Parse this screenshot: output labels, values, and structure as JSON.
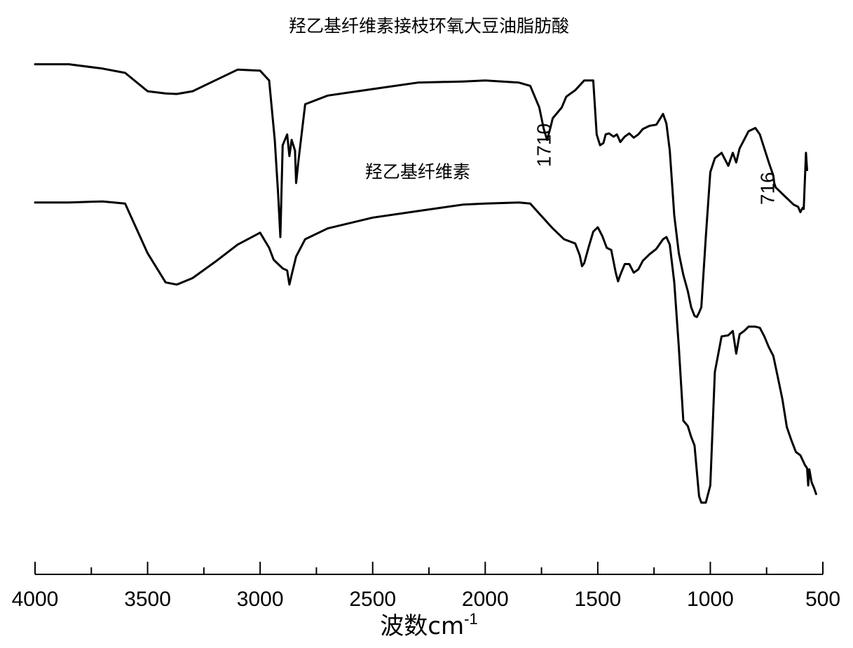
{
  "chart_data": {
    "type": "line",
    "title": "",
    "xlabel": "波数cm",
    "xlabel_superscript": "-1",
    "ylabel": "",
    "xlim": [
      4000,
      500
    ],
    "x_reversed": true,
    "y_axis_shown": false,
    "grid": false,
    "x_ticks": [
      {
        "value": 4000,
        "label": "4000"
      },
      {
        "value": 3500,
        "label": "3500"
      },
      {
        "value": 3000,
        "label": "3000"
      },
      {
        "value": 2500,
        "label": "2500"
      },
      {
        "value": 2000,
        "label": "2000"
      },
      {
        "value": 1500,
        "label": "1500"
      },
      {
        "value": 1000,
        "label": "1000"
      },
      {
        "value": 500,
        "label": "500"
      }
    ],
    "x_minor_ticks": [
      3750,
      3250,
      2750,
      2250,
      1750,
      1250,
      750
    ],
    "ylim": [
      0,
      100
    ],
    "series": [
      {
        "name": "羟乙基纤维素接枝环氧大豆油脂肪酸",
        "x": [
          4000,
          3850,
          3700,
          3600,
          3500,
          3420,
          3370,
          3300,
          3200,
          3100,
          3000,
          2960,
          2935,
          2920,
          2910,
          2900,
          2880,
          2870,
          2860,
          2845,
          2840,
          2830,
          2800,
          2700,
          2500,
          2300,
          2100,
          2000,
          1850,
          1800,
          1760,
          1740,
          1725,
          1712,
          1700,
          1680,
          1660,
          1640,
          1600,
          1560,
          1520,
          1505,
          1490,
          1475,
          1465,
          1450,
          1430,
          1415,
          1400,
          1380,
          1360,
          1340,
          1320,
          1300,
          1270,
          1240,
          1210,
          1195,
          1180,
          1160,
          1140,
          1120,
          1100,
          1085,
          1070,
          1060,
          1050,
          1040,
          1020,
          1000,
          980,
          950,
          920,
          900,
          885,
          870,
          850,
          830,
          800,
          780,
          760,
          740,
          720,
          716,
          710,
          690,
          670,
          650,
          630,
          610,
          600,
          590,
          585,
          580,
          575,
          570
        ],
        "y": [
          92,
          92,
          91.2,
          90.4,
          87,
          86.6,
          86.5,
          87,
          89,
          91,
          90.8,
          89,
          78,
          68,
          60,
          77,
          79,
          75,
          78,
          76,
          70,
          74,
          84.6,
          86.2,
          87.4,
          88.6,
          88.8,
          89,
          88.6,
          88,
          84,
          80,
          78,
          80,
          82,
          83,
          84,
          86,
          87.2,
          89,
          89,
          79,
          77,
          77.4,
          79,
          79.2,
          78.6,
          79,
          77.6,
          78.6,
          79.2,
          78.4,
          79,
          80,
          80.6,
          80.8,
          82.8,
          81,
          76,
          64,
          57,
          53,
          50,
          47,
          45.4,
          45.2,
          46,
          47,
          60,
          72,
          74.6,
          75.6,
          73.2,
          75.6,
          73.8,
          76.4,
          78,
          79.6,
          80.2,
          79,
          76.4,
          73.8,
          71.4,
          70,
          69.2,
          68.4,
          67.6,
          66.8,
          66,
          65.6,
          64.6,
          65.4,
          65.2,
          70.4,
          75.6,
          72.4
        ],
        "y_units": "relative transmittance (percent of plot height)"
      },
      {
        "name": "羟乙基纤维素",
        "x": [
          4000,
          3850,
          3700,
          3600,
          3500,
          3420,
          3370,
          3300,
          3200,
          3100,
          3000,
          2960,
          2940,
          2920,
          2900,
          2880,
          2870,
          2860,
          2840,
          2800,
          2700,
          2500,
          2300,
          2100,
          2000,
          1850,
          1800,
          1700,
          1650,
          1600,
          1580,
          1570,
          1560,
          1540,
          1520,
          1500,
          1480,
          1460,
          1440,
          1420,
          1410,
          1400,
          1380,
          1360,
          1340,
          1320,
          1300,
          1270,
          1240,
          1210,
          1195,
          1180,
          1160,
          1140,
          1120,
          1100,
          1085,
          1070,
          1060,
          1050,
          1040,
          1020,
          1000,
          980,
          950,
          920,
          900,
          885,
          870,
          850,
          830,
          800,
          780,
          760,
          740,
          720,
          700,
          680,
          660,
          640,
          620,
          600,
          580,
          570,
          565,
          560,
          550,
          540,
          530
        ],
        "y": [
          66.4,
          66.4,
          66.6,
          66.2,
          57,
          51.6,
          51.2,
          52.4,
          55.4,
          58.6,
          60.8,
          58,
          55.8,
          55,
          54.2,
          53.8,
          51.2,
          53,
          56.4,
          59.6,
          61.6,
          63.6,
          64.8,
          66,
          66.2,
          66.4,
          66.2,
          61.6,
          59.6,
          58.8,
          56.6,
          54.6,
          55.2,
          58.2,
          61,
          61.8,
          60.2,
          58,
          57.6,
          53.4,
          51.8,
          53,
          55,
          55,
          53.4,
          54,
          55.6,
          56.8,
          57.8,
          59.6,
          60,
          58.6,
          51.6,
          39.6,
          26,
          25,
          23,
          21.4,
          16.6,
          12,
          10.8,
          10.8,
          14,
          35,
          41.6,
          41.8,
          42.6,
          38.4,
          42,
          42.6,
          43.4,
          43.4,
          43.2,
          41.6,
          39.6,
          38,
          34,
          30,
          24.8,
          22.4,
          20.2,
          19.6,
          17.8,
          17.2,
          14,
          17,
          14.6,
          13.6,
          12.4
        ],
        "y_units": "relative transmittance (percent of plot height)"
      }
    ],
    "annotations": [
      {
        "text": "1710",
        "x": 1710,
        "y": 77
      },
      {
        "text": "716",
        "x": 716,
        "y": 69
      }
    ],
    "series_labels": [
      {
        "text": "羟乙基纤维素接枝环氧大豆油脂肪酸",
        "x": 2250,
        "y": 98
      },
      {
        "text": "羟乙基纤维素",
        "x": 2300,
        "y": 71
      }
    ]
  }
}
